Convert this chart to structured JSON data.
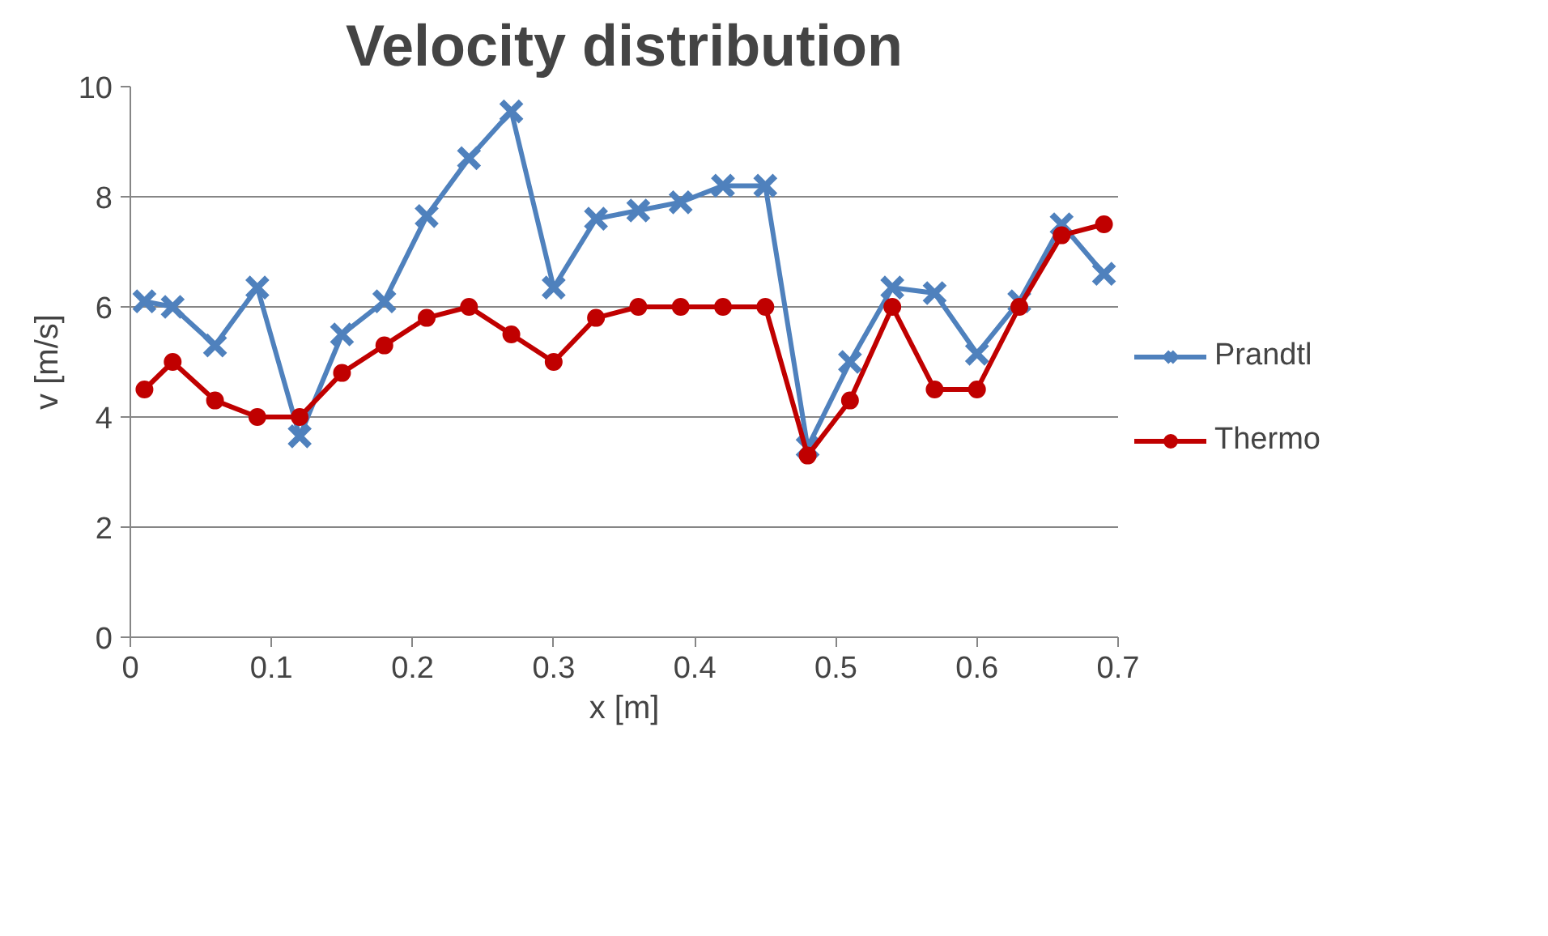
{
  "chart_data": {
    "type": "line",
    "title": "Velocity distribution",
    "xlabel": "x [m]",
    "ylabel": "v [m/s]",
    "x": [
      0.01,
      0.03,
      0.06,
      0.09,
      0.12,
      0.15,
      0.18,
      0.21,
      0.24,
      0.27,
      0.3,
      0.33,
      0.36,
      0.39,
      0.42,
      0.45,
      0.48,
      0.51,
      0.54,
      0.57,
      0.6,
      0.63,
      0.66,
      0.69
    ],
    "series": [
      {
        "name": "Prandtl",
        "color": "#4f81bd",
        "marker": "cross",
        "values": [
          6.1,
          6.0,
          5.3,
          6.35,
          3.65,
          5.5,
          6.1,
          7.65,
          8.7,
          9.55,
          6.35,
          7.6,
          7.75,
          7.9,
          8.2,
          8.2,
          3.45,
          5.0,
          6.35,
          6.25,
          5.15,
          6.1,
          7.5,
          6.6
        ]
      },
      {
        "name": "Thermo",
        "color": "#c00000",
        "marker": "circle",
        "values": [
          4.5,
          5.0,
          4.3,
          4.0,
          4.0,
          4.8,
          5.3,
          5.8,
          6.0,
          5.5,
          5.0,
          5.8,
          6.0,
          6.0,
          6.0,
          6.0,
          3.3,
          4.3,
          6.0,
          4.5,
          4.5,
          6.0,
          7.3,
          7.5
        ]
      }
    ],
    "xlim": [
      0,
      0.7
    ],
    "ylim": [
      0,
      10
    ],
    "xticks": [
      0,
      0.1,
      0.2,
      0.3,
      0.4,
      0.5,
      0.6,
      0.7
    ],
    "yticks": [
      0,
      2,
      4,
      6,
      8,
      10
    ],
    "grid": "y",
    "legend": "right"
  }
}
